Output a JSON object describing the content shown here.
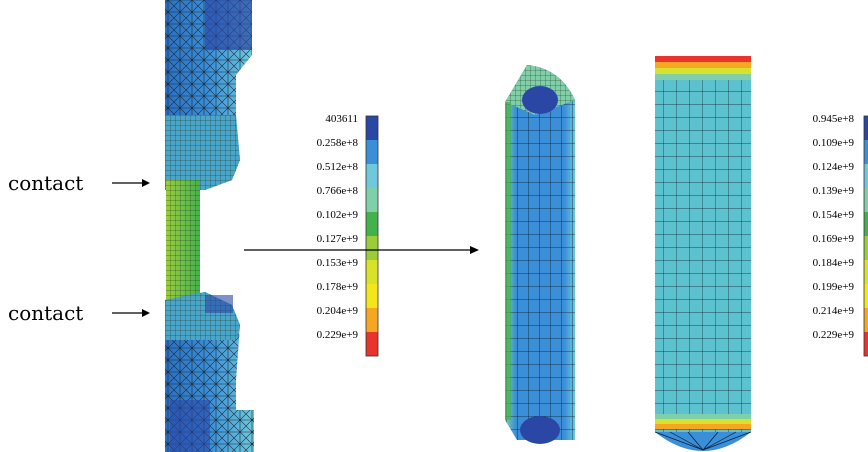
{
  "annotations": {
    "contact_upper": "contact",
    "contact_lower": "contact"
  },
  "legend_left": {
    "ticks": [
      "403611",
      "0.258e+8",
      "0.512e+8",
      "0.766e+8",
      "0.102e+9",
      "0.127e+9",
      "0.153e+9",
      "0.178e+9",
      "0.204e+9",
      "0.229e+9"
    ],
    "colors": [
      "#2b47a6",
      "#3a8fd8",
      "#6fc9da",
      "#7fcfa9",
      "#44b24a",
      "#9bcc3a",
      "#d9e22a",
      "#f5e61c",
      "#f5a623",
      "#e8342c"
    ]
  },
  "legend_right": {
    "ticks": [
      "0.945e+8",
      "0.109e+9",
      "0.124e+9",
      "0.139e+9",
      "0.154e+9",
      "0.169e+9",
      "0.184e+9",
      "0.199e+9",
      "0.214e+9",
      "0.229e+9"
    ],
    "colors": [
      "#2b47a6",
      "#3a8fd8",
      "#6fc9da",
      "#7fcfa9",
      "#44b24a",
      "#9bcc3a",
      "#d9e22a",
      "#f5e61c",
      "#f5a623",
      "#e8342c"
    ]
  }
}
